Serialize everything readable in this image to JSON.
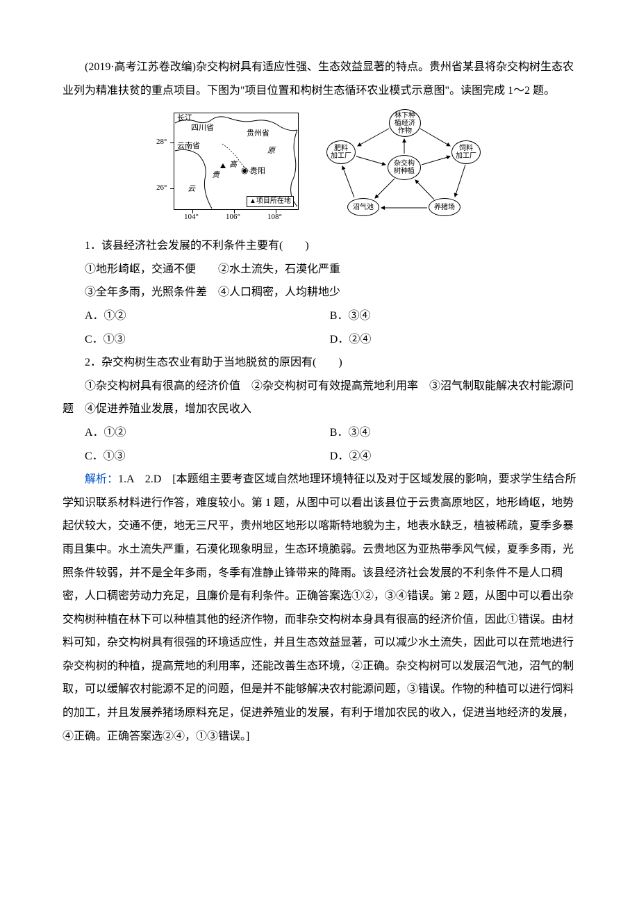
{
  "intro": "(2019·高考江苏卷改编)杂交构树具有适应性强、生态效益显著的特点。贵州省某县将杂交构树生态农业列为精准扶贫的重点项目。下图为\"项目位置和构树生态循环农业模式示意图\"。读图完成 1～2 题。",
  "map": {
    "coords_left": [
      "28°",
      "26°"
    ],
    "coords_bottom": [
      "104°",
      "106°",
      "108°"
    ],
    "labels": {
      "changjiang": "长江",
      "sichuan": "四川省",
      "guizhou": "贵州省",
      "yunnan": "云南省",
      "yun": "云",
      "gui": "贵",
      "gao": "高",
      "yuan": "原",
      "guiyang": "贵阳"
    },
    "dot_symbol": "◉",
    "legend": "▲项目所在地"
  },
  "cycle": {
    "nodes": {
      "top": "林下种\n植经济\n作物",
      "left": "肥料\n加工厂",
      "right": "饲料\n加工厂",
      "center": "杂交构\n树种植",
      "botleft": "沼气池",
      "botright": "养猪场"
    }
  },
  "q1": {
    "stem": "1．该县经济社会发展的不利条件主要有(　　)",
    "items": [
      "①地形崎岖，交通不便　　②水土流失，石漠化严重",
      "③全年多雨，光照条件差　④人口稠密，人均耕地少"
    ],
    "A": "A．①②",
    "B": "B．③④",
    "C": "C．①③",
    "D": "D．②④"
  },
  "q2": {
    "stem": "2．杂交构树生态农业有助于当地脱贫的原因有(　　)",
    "items": "①杂交构树具有很高的经济价值　②杂交构树可有效提高荒地利用率　③沼气制取能解决农村能源问题　④促进养殖业发展，增加农民收入",
    "A": "A．①②",
    "B": "B．③④",
    "C": "C．①③",
    "D": "D．②④"
  },
  "analysis": {
    "label": "解析：",
    "answers": "1.A　2.D　",
    "body": "[本题组主要考查区域自然地理环境特征以及对于区域发展的影响，要求学生结合所学知识联系材料进行作答，难度较小。第 1 题，从图中可以看出该县位于云贵高原地区，地形崎岖，地势起伏较大，交通不便，地无三尺平，贵州地区地形以喀斯特地貌为主，地表水缺乏，植被稀疏，夏季多暴雨且集中。水土流失严重，石漠化现象明显，生态环境脆弱。云贵地区为亚热带季风气候，夏季多雨，光照条件较弱，并不是全年多雨，冬季有准静止锋带来的降雨。该县经济社会发展的不利条件不是人口稠密，人口稠密劳动力充足，且廉价是有利条件。正确答案选①②，③④错误。第 2 题，从图中可以看出杂交构树种植在林下可以种植其他的经济作物，而非杂交构树本身具有很高的经济价值，因此①错误。由材料可知，杂交构树具有很强的环境适应性，并且生态效益显著，可以减少水土流失，因此可以在荒地进行杂交构树的种植，提高荒地的利用率，还能改善生态环境，②正确。杂交构树可以发展沼气池，沼气的制取，可以缓解农村能源不足的问题，但是并不能够解决农村能源问题，③错误。作物的种植可以进行饲料的加工，并且发展养猪场原料充足，促进养殖业的发展，有利于增加农民的收入，促进当地经济的发展，④正确。正确答案选②④，①③错误。]"
  }
}
